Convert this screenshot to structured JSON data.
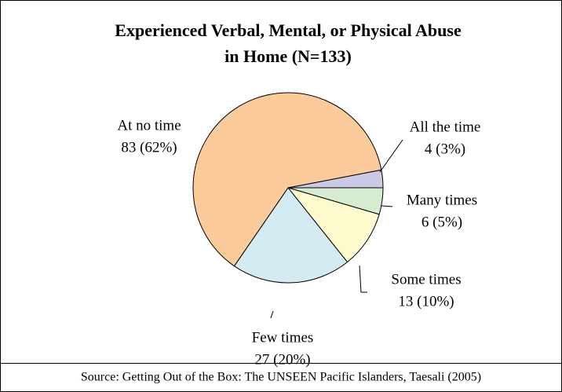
{
  "chart_data": {
    "type": "pie",
    "title": [
      "Experienced Verbal, Mental, or Physical Abuse",
      "in Home (N=133)"
    ],
    "categories": [
      "All the time",
      "Many times",
      "Some times",
      "Few times",
      "At no time"
    ],
    "values": [
      4,
      6,
      13,
      27,
      83
    ],
    "value_labels": [
      "4 (3%)",
      "6 (5%)",
      "13 (10%)",
      "27 (20%)",
      "83 (62%)"
    ],
    "colors": [
      "#ccc9e6",
      "#d5ecd1",
      "#fdfacd",
      "#d4ebf4",
      "#fccb9b"
    ],
    "source": "Source: Getting Out of the Box: The UNSEEN Pacific Islanders, Taesali (2005)"
  }
}
